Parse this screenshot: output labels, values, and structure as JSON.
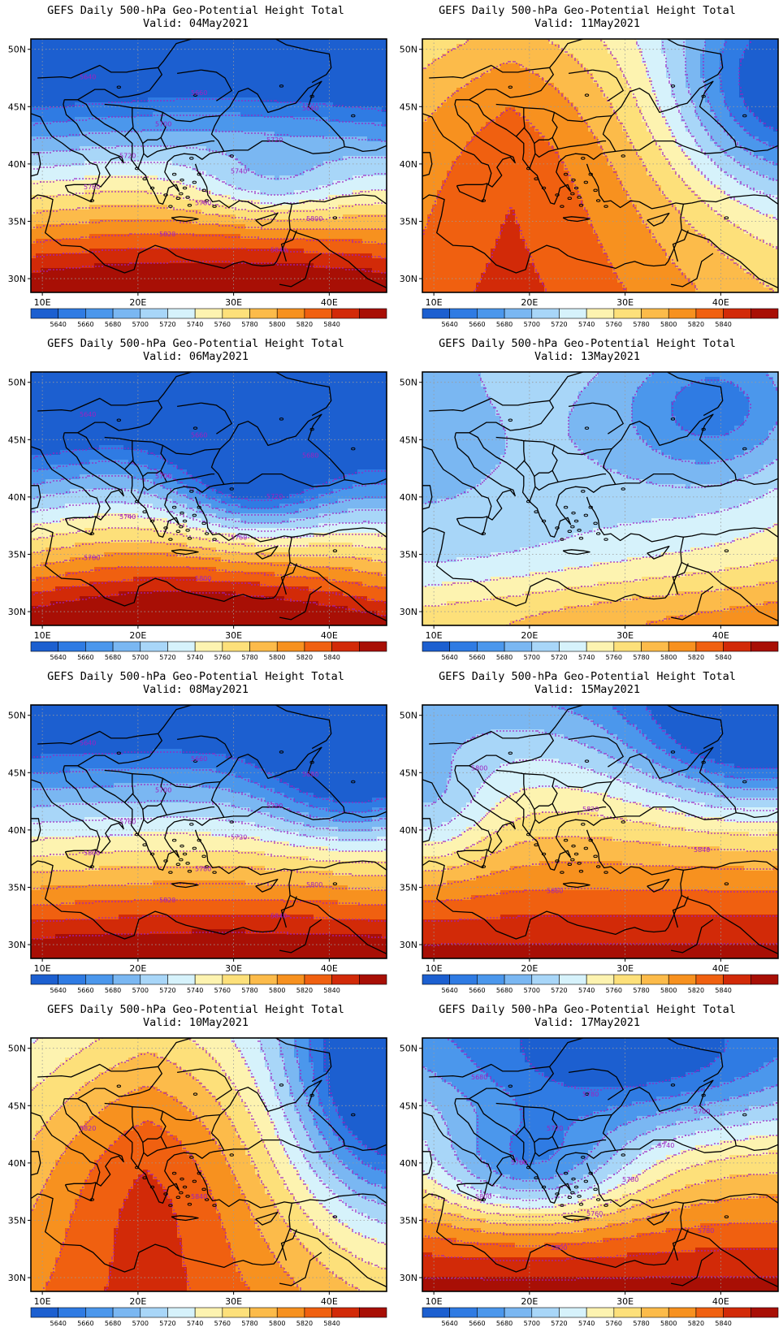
{
  "title_text": "GEFS Daily 500-hPa Geo-Potential Height Total",
  "valid_prefix": "Valid:",
  "lat_ticks": [
    "50N",
    "45N",
    "40N",
    "35N",
    "30N"
  ],
  "lon_ticks": [
    "10E",
    "20E",
    "30E",
    "40E"
  ],
  "colorbar": {
    "levels": [
      "5640",
      "5660",
      "5680",
      "5700",
      "5720",
      "5740",
      "5760",
      "5780",
      "5800",
      "5820",
      "5840"
    ],
    "colors": [
      "#1c5fd0",
      "#2f7be3",
      "#4b97ec",
      "#7ab7f2",
      "#a8d6f8",
      "#d6f2fb",
      "#fdf3b0",
      "#fde07a",
      "#fcbb4a",
      "#f7911f",
      "#f06010",
      "#d22a08",
      "#a80f05"
    ]
  },
  "colors": {
    "contour": "#a020c0",
    "coast": "#000000",
    "grid": "#9a9a9a"
  },
  "panels": [
    {
      "valid": "04May2021",
      "labels": [
        "5640",
        "5660",
        "5680",
        "5700",
        "5720",
        "5720",
        "5740",
        "5760",
        "5780",
        "5800",
        "5820",
        "5840"
      ]
    },
    {
      "valid": "11May2021",
      "labels": []
    },
    {
      "valid": "06May2021",
      "labels": [
        "5640",
        "5660",
        "5680",
        "5700",
        "5720",
        "5740",
        "5760",
        "5780",
        "5800"
      ]
    },
    {
      "valid": "13May2021",
      "labels": []
    },
    {
      "valid": "08May2021",
      "labels": [
        "5640",
        "5660",
        "5680",
        "5700",
        "5720",
        "5760",
        "5720",
        "5800",
        "5780",
        "5800",
        "5820",
        "5840"
      ]
    },
    {
      "valid": "15May2021",
      "labels": [
        "5800",
        "5820",
        "5840",
        "5860"
      ]
    },
    {
      "valid": "10May2021",
      "labels": [
        "5820",
        "5840"
      ]
    },
    {
      "valid": "17May2021",
      "labels": [
        "5680",
        "5780",
        "5700",
        "5720",
        "5740",
        "5760",
        "5780",
        "5800",
        "5760",
        "5780",
        "5800"
      ]
    }
  ]
}
